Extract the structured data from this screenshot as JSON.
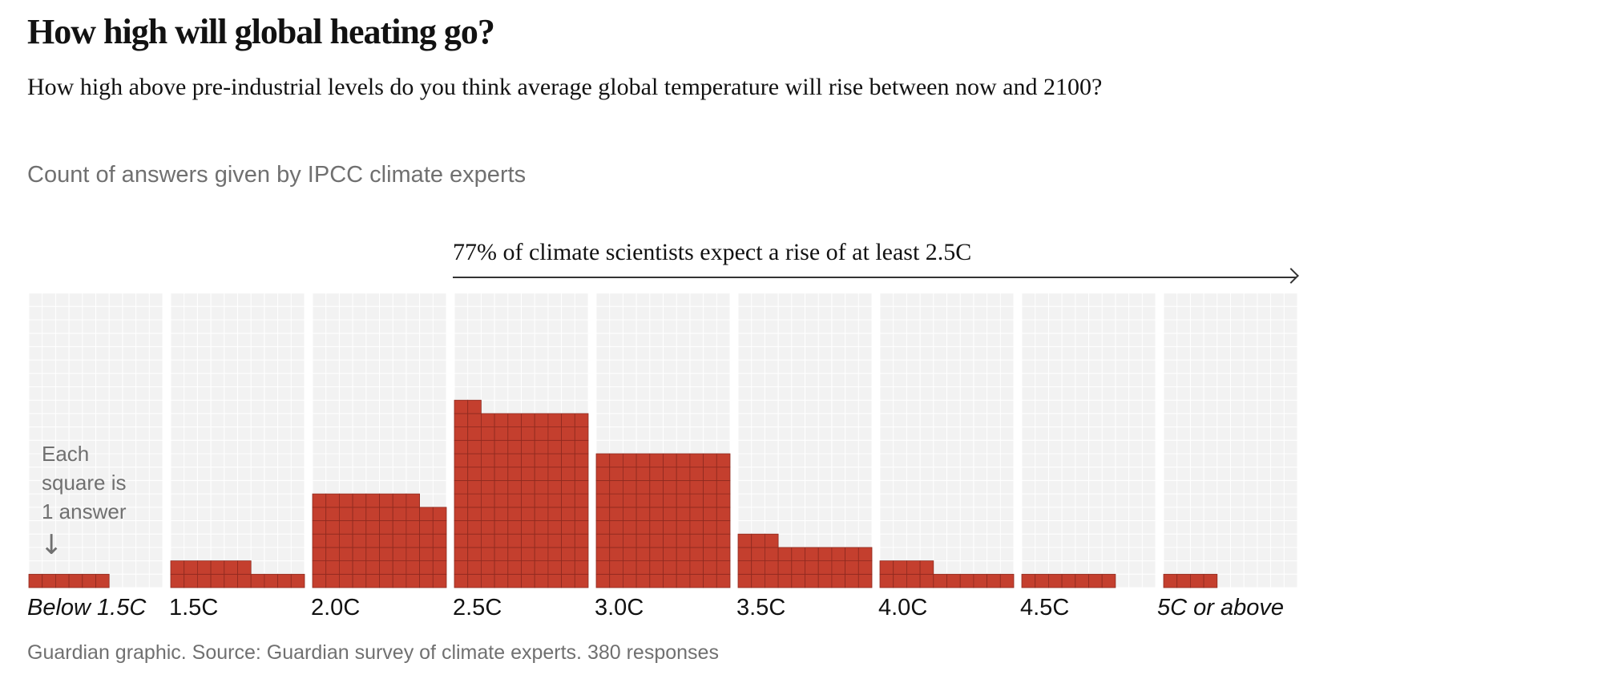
{
  "header": {
    "title": "How high will global heating go?",
    "subtitle": "How high above pre-industrial levels do you think average global temperature will rise between now and 2100?",
    "subhead": "Count of answers given by IPCC climate experts"
  },
  "annotation": {
    "text": "77% of climate scientists expect a rise of at least 2.5C",
    "key_text": [
      "Each",
      "square is",
      "1 answer"
    ],
    "key_arrow": "↓"
  },
  "footer": "Guardian graphic. Source: Guardian survey of climate experts. 380 responses",
  "chart_data": {
    "type": "waffle-bar",
    "title": "How high will global heating go?",
    "categories": [
      "Below 1.5C",
      "1.5C",
      "2.0C",
      "2.5C",
      "3.0C",
      "3.5C",
      "4.0C",
      "4.5C",
      "5C or above"
    ],
    "italic_categories": [
      "Below 1.5C",
      "5C or above"
    ],
    "values": [
      6,
      16,
      68,
      132,
      100,
      33,
      14,
      7,
      4
    ],
    "squares_per_row": 10,
    "unit": "1 answer per square",
    "total": 380,
    "grid": true,
    "colors": {
      "square": "#c43f2e",
      "square_border": "#8e2a1f",
      "panel": "#f2f2f2",
      "gridline": "#ffffff"
    }
  }
}
